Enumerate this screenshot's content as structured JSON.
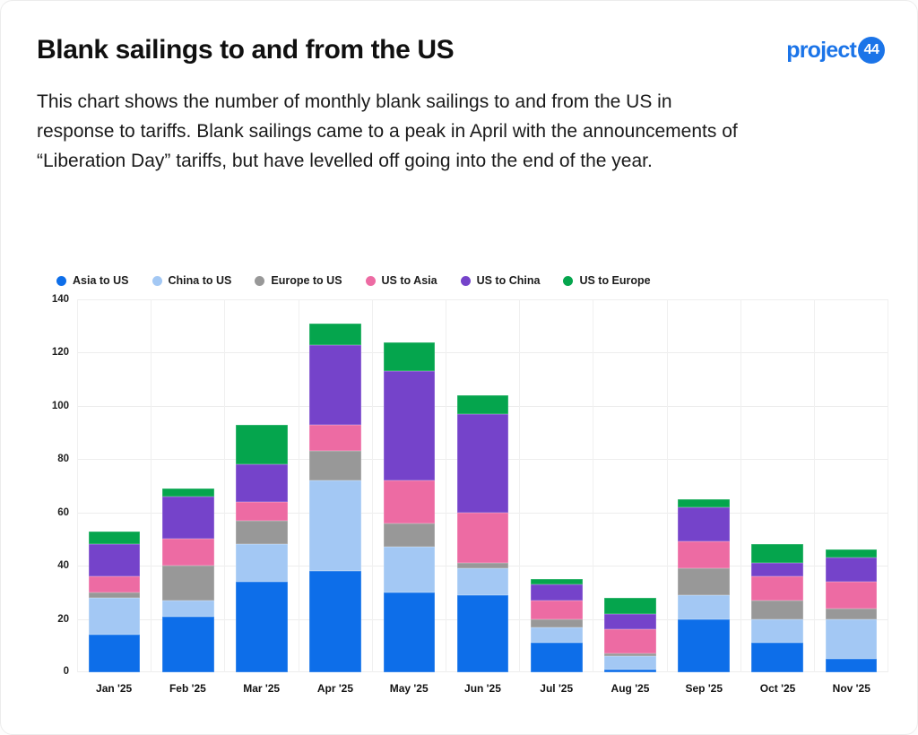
{
  "card": {
    "title": "Blank sailings to and from the US",
    "description": "This chart shows the number of monthly blank sailings to and from the US in response to tariffs. Blank sailings came to a peak in April with the announcements of “Liberation Day” tariffs, but have levelled off going into the end of the year.",
    "logo": {
      "text": "project",
      "badge": "44"
    }
  },
  "colors": {
    "brand_blue": "#1b74e8",
    "grid": "#ededed",
    "text": "#1a1a1a"
  },
  "chart_data": {
    "type": "bar",
    "stacked": true,
    "title": "Blank sailings to and from the US",
    "xlabel": "",
    "ylabel": "",
    "ylim": [
      0,
      140
    ],
    "ytick_step": 20,
    "grid": true,
    "legend_position": "top",
    "categories": [
      "Jan '25",
      "Feb '25",
      "Mar '25",
      "Apr '25",
      "May '25",
      "Jun '25",
      "Jul '25",
      "Aug '25",
      "Sep '25",
      "Oct '25",
      "Nov '25"
    ],
    "series": [
      {
        "name": "Asia to US",
        "color": "#0d6ee9",
        "values": [
          14,
          21,
          34,
          38,
          30,
          29,
          11,
          1,
          20,
          11,
          5
        ]
      },
      {
        "name": "China to US",
        "color": "#a3c8f4",
        "values": [
          14,
          6,
          14,
          34,
          17,
          10,
          6,
          5,
          9,
          9,
          15
        ]
      },
      {
        "name": "Europe to US",
        "color": "#989898",
        "values": [
          2,
          13,
          9,
          11,
          9,
          2,
          3,
          1,
          10,
          7,
          4
        ]
      },
      {
        "name": "US to Asia",
        "color": "#ed6ba3",
        "values": [
          6,
          10,
          7,
          10,
          16,
          19,
          7,
          9,
          10,
          9,
          10
        ]
      },
      {
        "name": "US to China",
        "color": "#7543ca",
        "values": [
          12,
          16,
          14,
          30,
          41,
          37,
          6,
          6,
          13,
          5,
          9
        ]
      },
      {
        "name": "US to Europe",
        "color": "#05a54d",
        "values": [
          5,
          3,
          15,
          8,
          11,
          7,
          2,
          6,
          3,
          7,
          3
        ]
      }
    ],
    "totals": [
      53,
      69,
      93,
      131,
      124,
      104,
      35,
      28,
      65,
      48,
      46
    ]
  }
}
